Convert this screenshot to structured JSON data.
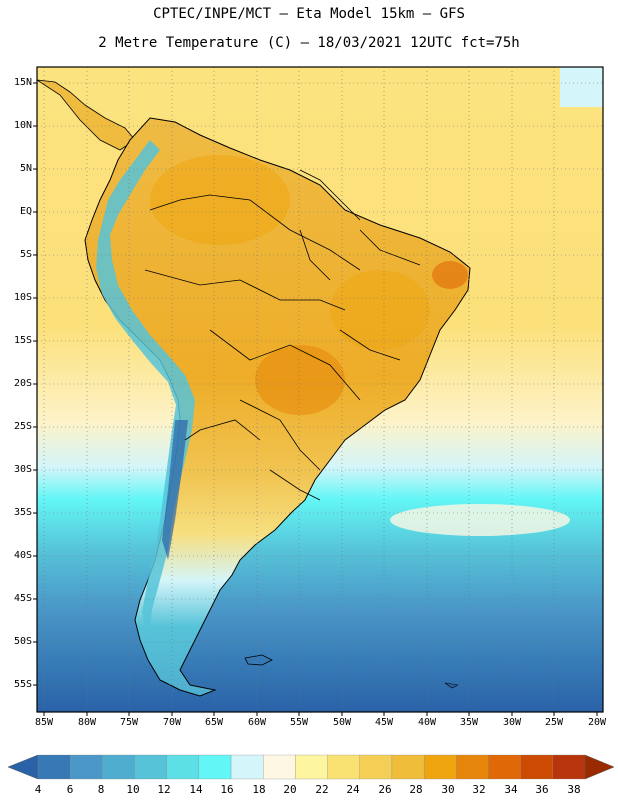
{
  "header": {
    "line1": "CPTEC/INPE/MCT –  Eta Model 15km – GFS",
    "line2": "2 Metre Temperature (C) – 18/03/2021 12UTC fct=75h"
  },
  "lat_labels": [
    "15N",
    "10N",
    "5N",
    "EQ",
    "5S",
    "10S",
    "15S",
    "20S",
    "25S",
    "30S",
    "35S",
    "40S",
    "45S",
    "50S",
    "55S"
  ],
  "lon_labels": [
    "85W",
    "80W",
    "75W",
    "70W",
    "65W",
    "60W",
    "55W",
    "50W",
    "45W",
    "40W",
    "35W",
    "30W",
    "25W",
    "20W"
  ],
  "colorbar": {
    "labels": [
      "4",
      "6",
      "8",
      "10",
      "12",
      "14",
      "16",
      "18",
      "20",
      "22",
      "24",
      "26",
      "28",
      "30",
      "32",
      "34",
      "36",
      "38"
    ],
    "colors": [
      "#2a62a8",
      "#3679b5",
      "#4a97c8",
      "#4faecf",
      "#56c3d8",
      "#5ddfe6",
      "#63f6f6",
      "#d4f5f9",
      "#fdf7e3",
      "#fef5a0",
      "#f9e271",
      "#f5cf55",
      "#efbd3a",
      "#eea510",
      "#e6860a",
      "#e06806",
      "#cc4a02",
      "#b8340a",
      "#9a2b00"
    ]
  },
  "map": {
    "ocean_warm": "#fce07a",
    "land_hot": "#eeae2a",
    "ocean_cool": "#5ddfe6",
    "ocean_cold": "#2a62a8"
  }
}
